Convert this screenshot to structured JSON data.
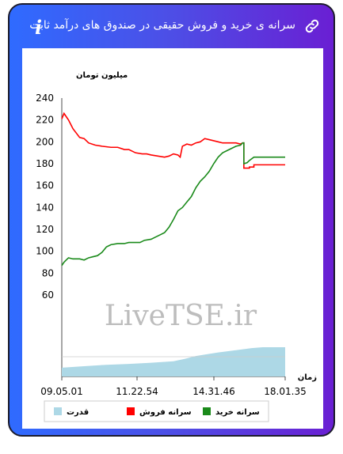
{
  "header": {
    "title": "سرانه ی خرید و فروش حقیقی در صندوق های درآمد ثابت",
    "info_icon": "i",
    "link_icon": "link-icon"
  },
  "watermark": "LiveTSE.ir",
  "chart_data": {
    "type": "line",
    "ylabel": "میلیون تومان",
    "xlabel": "زمان",
    "ylim": [
      60,
      240
    ],
    "yticks": [
      60,
      80,
      100,
      120,
      140,
      160,
      180,
      200,
      220,
      240
    ],
    "x_tick_labels": [
      "09.05.01",
      "11.22.54",
      "14.31.46",
      "18.01.35"
    ],
    "legend": [
      "سرانه خرید",
      "سرانه فروش",
      "قدرت"
    ],
    "colors": {
      "buy": "#1a8a1a",
      "sell": "#ff0000",
      "power": "#add8e6"
    },
    "series": [
      {
        "name": "سرانه فروش",
        "key": "sell",
        "points": [
          [
            0,
            221
          ],
          [
            0.01,
            226
          ],
          [
            0.03,
            220
          ],
          [
            0.05,
            212
          ],
          [
            0.08,
            204
          ],
          [
            0.1,
            203
          ],
          [
            0.12,
            199
          ],
          [
            0.15,
            197
          ],
          [
            0.18,
            196
          ],
          [
            0.22,
            195
          ],
          [
            0.25,
            195
          ],
          [
            0.28,
            193
          ],
          [
            0.3,
            193
          ],
          [
            0.33,
            190
          ],
          [
            0.36,
            189
          ],
          [
            0.38,
            189
          ],
          [
            0.4,
            188
          ],
          [
            0.43,
            187
          ],
          [
            0.46,
            186
          ],
          [
            0.48,
            187
          ],
          [
            0.5,
            189
          ],
          [
            0.52,
            188
          ],
          [
            0.53,
            186
          ],
          [
            0.54,
            196
          ],
          [
            0.56,
            198
          ],
          [
            0.58,
            197
          ],
          [
            0.6,
            199
          ],
          [
            0.62,
            200
          ],
          [
            0.64,
            203
          ],
          [
            0.66,
            202
          ],
          [
            0.7,
            200
          ],
          [
            0.72,
            199
          ],
          [
            0.75,
            199
          ],
          [
            0.78,
            199
          ],
          [
            0.8,
            198
          ],
          [
            0.81,
            199
          ],
          [
            0.815,
            199
          ],
          [
            0.815,
            176
          ],
          [
            0.84,
            176
          ],
          [
            0.84,
            177
          ],
          [
            0.86,
            177
          ],
          [
            0.86,
            179
          ],
          [
            1.0,
            179
          ]
        ]
      },
      {
        "name": "سرانه خرید",
        "key": "buy",
        "points": [
          [
            0,
            87
          ],
          [
            0.01,
            90
          ],
          [
            0.02,
            92
          ],
          [
            0.03,
            94
          ],
          [
            0.05,
            93
          ],
          [
            0.08,
            93
          ],
          [
            0.1,
            92
          ],
          [
            0.12,
            94
          ],
          [
            0.14,
            95
          ],
          [
            0.16,
            96
          ],
          [
            0.18,
            99
          ],
          [
            0.2,
            104
          ],
          [
            0.22,
            106
          ],
          [
            0.25,
            107
          ],
          [
            0.28,
            107
          ],
          [
            0.3,
            108
          ],
          [
            0.33,
            108
          ],
          [
            0.35,
            108
          ],
          [
            0.37,
            110
          ],
          [
            0.4,
            111
          ],
          [
            0.42,
            113
          ],
          [
            0.44,
            115
          ],
          [
            0.46,
            117
          ],
          [
            0.48,
            122
          ],
          [
            0.5,
            129
          ],
          [
            0.52,
            137
          ],
          [
            0.54,
            140
          ],
          [
            0.56,
            145
          ],
          [
            0.58,
            150
          ],
          [
            0.6,
            158
          ],
          [
            0.62,
            164
          ],
          [
            0.64,
            168
          ],
          [
            0.66,
            173
          ],
          [
            0.68,
            180
          ],
          [
            0.7,
            186
          ],
          [
            0.72,
            190
          ],
          [
            0.74,
            192
          ],
          [
            0.76,
            194
          ],
          [
            0.78,
            196
          ],
          [
            0.8,
            197
          ],
          [
            0.81,
            199
          ],
          [
            0.815,
            199
          ],
          [
            0.815,
            180
          ],
          [
            0.83,
            181
          ],
          [
            0.84,
            183
          ],
          [
            0.86,
            186
          ],
          [
            1.0,
            186
          ]
        ]
      },
      {
        "name": "قدرت",
        "key": "power",
        "points": [
          [
            0,
            0.3
          ],
          [
            0.1,
            0.35
          ],
          [
            0.2,
            0.4
          ],
          [
            0.3,
            0.43
          ],
          [
            0.4,
            0.47
          ],
          [
            0.5,
            0.52
          ],
          [
            0.55,
            0.6
          ],
          [
            0.6,
            0.7
          ],
          [
            0.7,
            0.82
          ],
          [
            0.8,
            0.92
          ],
          [
            0.85,
            0.97
          ],
          [
            0.9,
            1.0
          ],
          [
            1.0,
            1.0
          ]
        ]
      }
    ]
  }
}
